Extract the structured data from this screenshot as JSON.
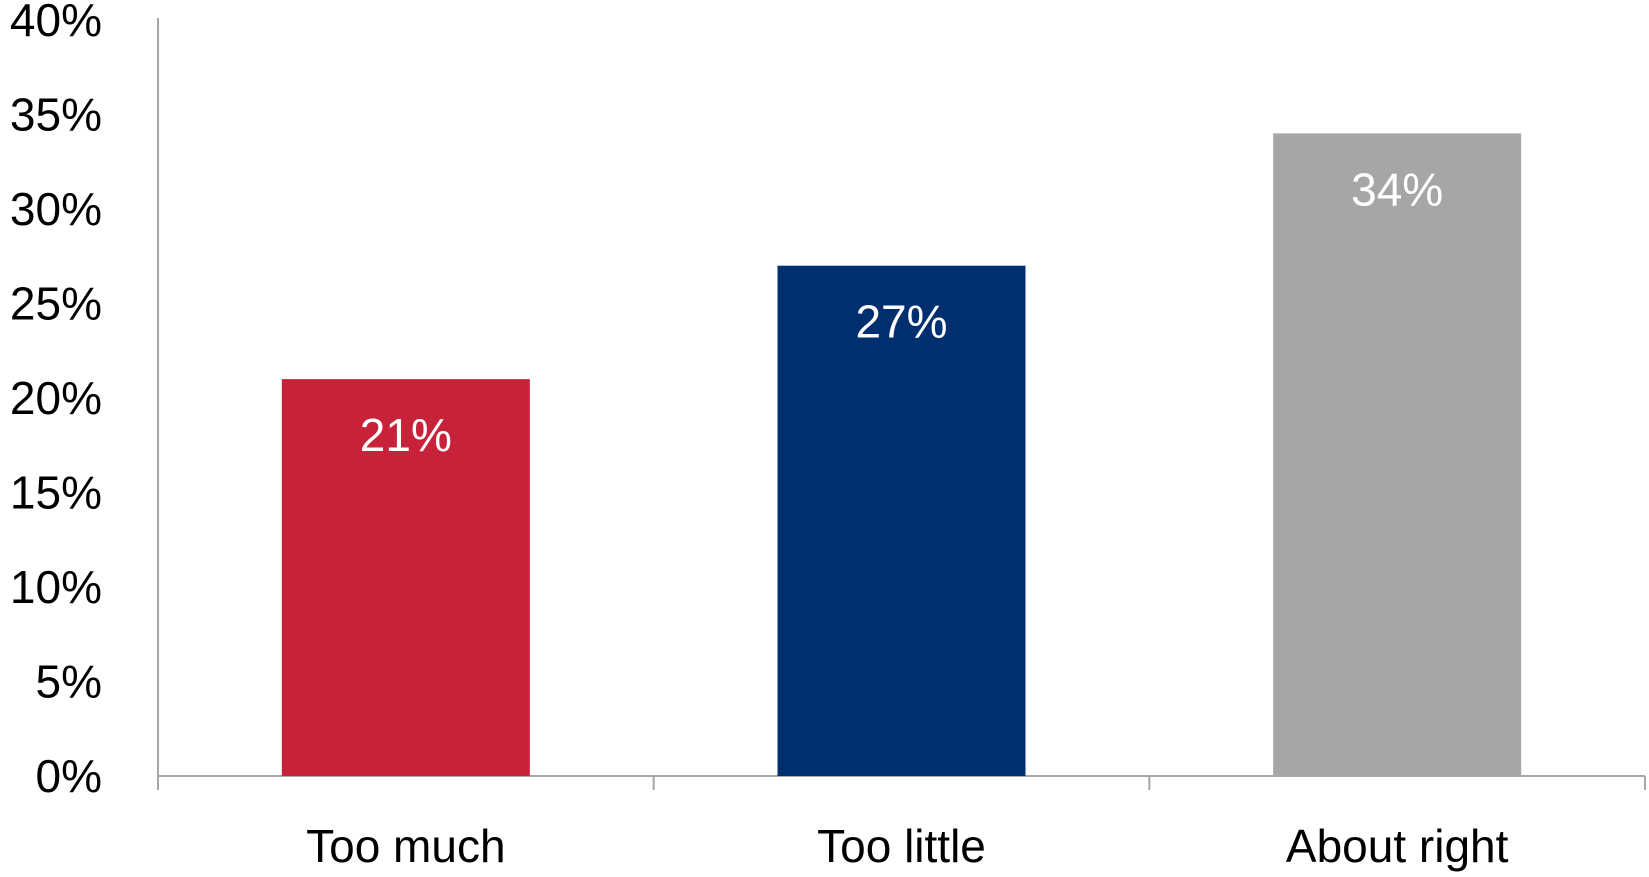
{
  "chart_data": {
    "type": "bar",
    "title": "",
    "xlabel": "",
    "ylabel": "",
    "categories": [
      "Too much",
      "Too little",
      "About right"
    ],
    "values": [
      21,
      27,
      34
    ],
    "value_labels": [
      "21%",
      "27%",
      "34%"
    ],
    "colors": [
      "#C8223A",
      "#002F6F",
      "#A6A6A6"
    ],
    "ylim": [
      0,
      40
    ],
    "y_ticks": [
      0,
      5,
      10,
      15,
      20,
      25,
      30,
      35,
      40
    ],
    "y_tick_labels": [
      "0%",
      "5%",
      "10%",
      "15%",
      "20%",
      "25%",
      "30%",
      "35%",
      "40%"
    ],
    "grid": false,
    "legend": "none",
    "axis_color": "#A6A6A6",
    "label_color": "#000000",
    "data_label_color": "#FFFFFF"
  }
}
